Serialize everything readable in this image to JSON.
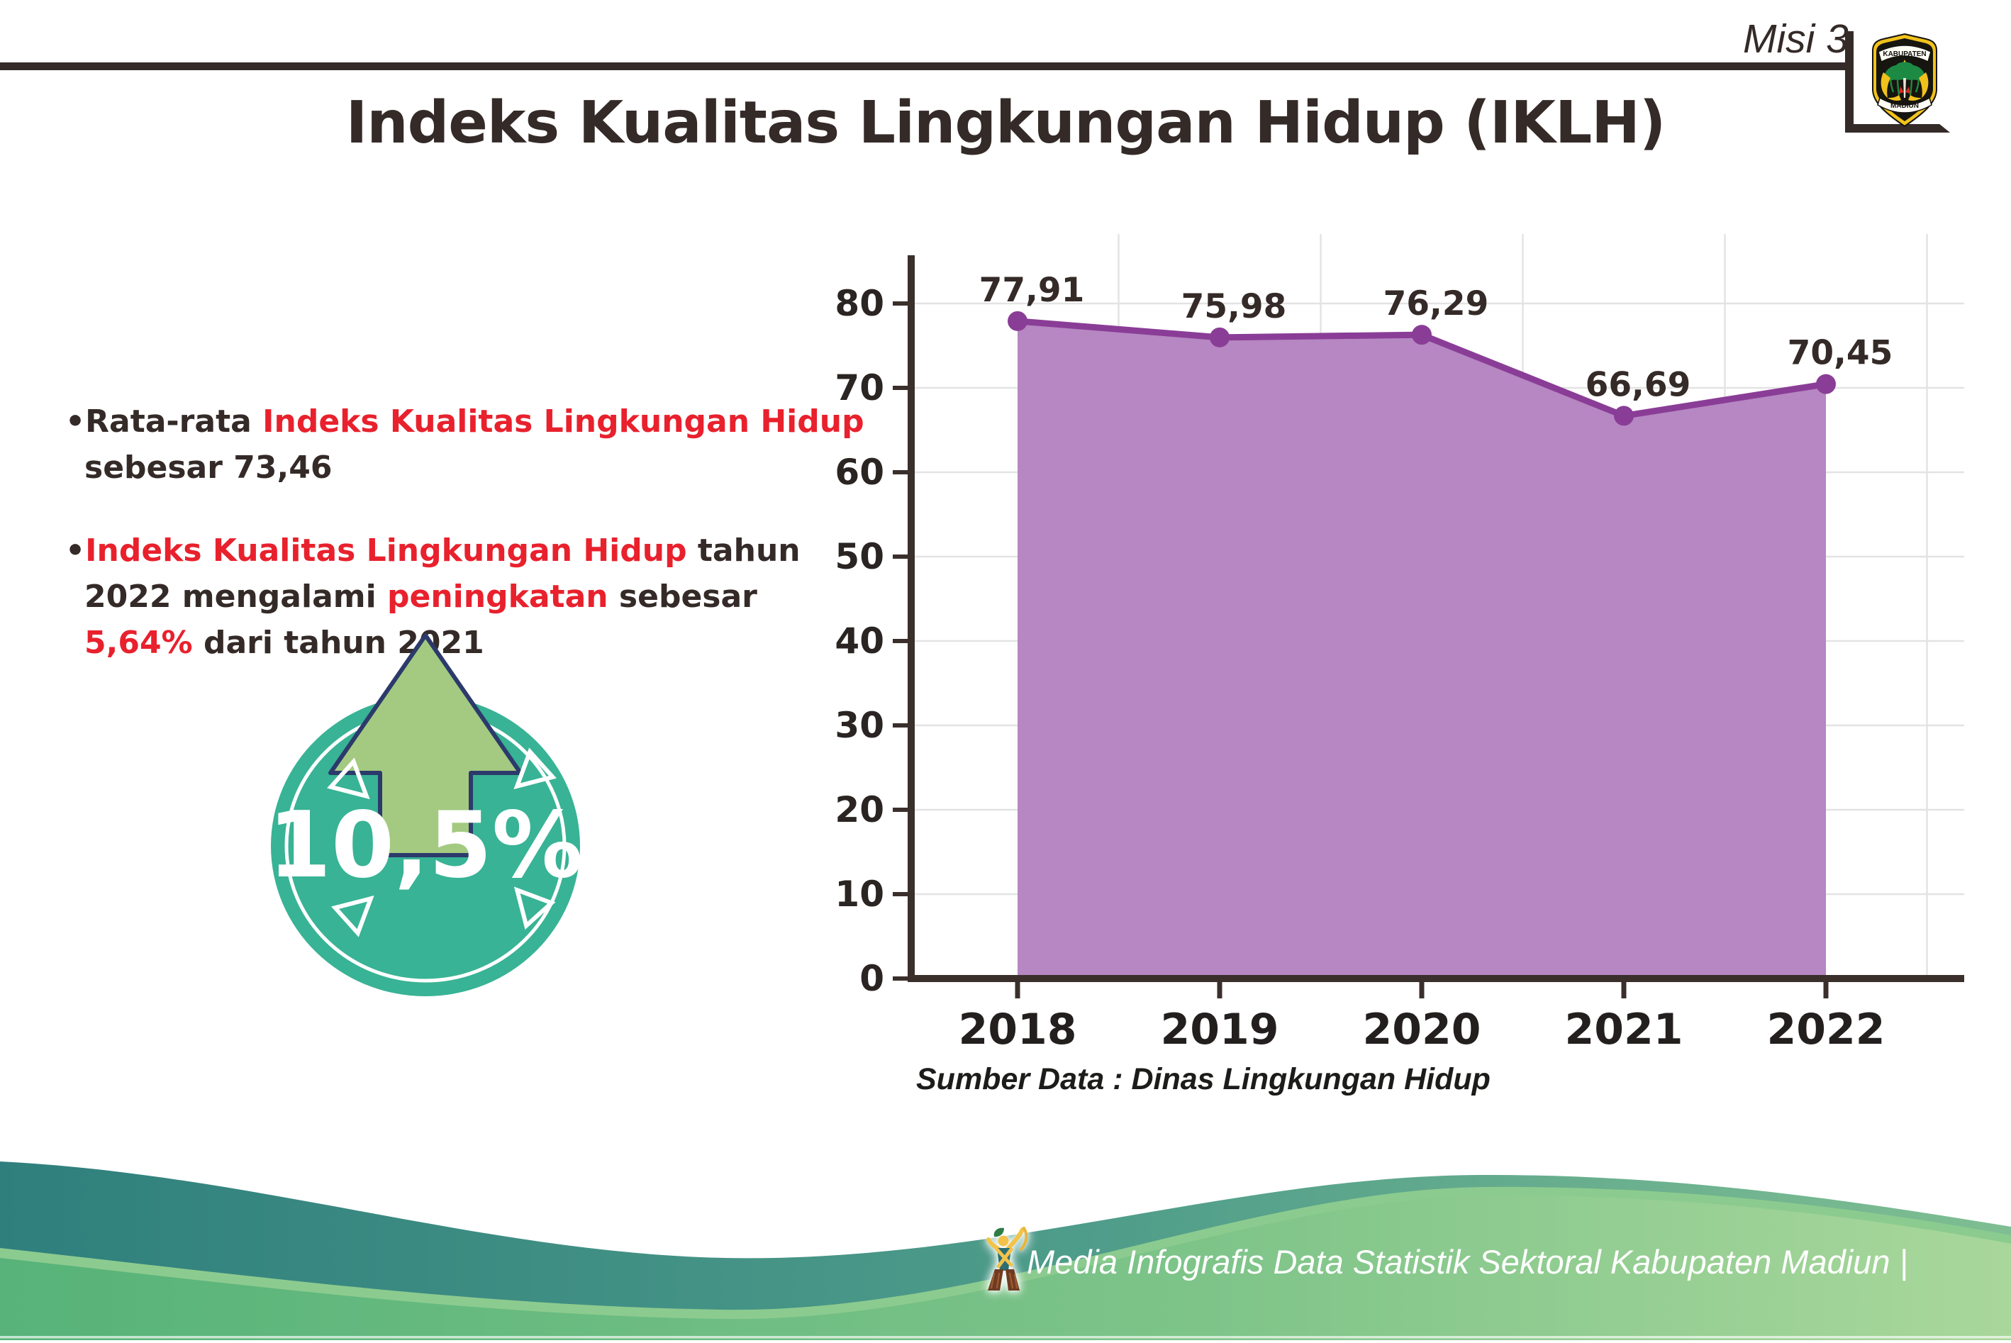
{
  "header": {
    "misi": "Misi 3",
    "logo": {
      "top": "KABUPATEN",
      "bottom": "MADIUN"
    }
  },
  "title": "Indeks Kualitas Lingkungan Hidup (IKLH)",
  "bullets": [
    {
      "marker": "•",
      "segments": [
        {
          "text": "Rata-rata ",
          "color": "dark"
        },
        {
          "text": "Indeks Kualitas Lingkungan Hidup",
          "color": "red"
        },
        {
          "text": " sebesar 73,46",
          "color": "dark"
        }
      ]
    },
    {
      "marker": "•",
      "segments": [
        {
          "text": "Indeks Kualitas Lingkungan Hidup",
          "color": "red"
        },
        {
          "text": " tahun 2022 mengalami ",
          "color": "dark"
        },
        {
          "text": "peningkatan",
          "color": "red"
        },
        {
          "text": " sebesar ",
          "color": "dark"
        },
        {
          "text": "5,64%",
          "color": "red"
        },
        {
          "text": " dari tahun 2021",
          "color": "dark"
        }
      ]
    }
  ],
  "badge": {
    "value": "10,5%"
  },
  "chart_data": {
    "type": "area",
    "categories": [
      "2018",
      "2019",
      "2020",
      "2021",
      "2022"
    ],
    "values": [
      77.91,
      75.98,
      76.29,
      66.69,
      70.45
    ],
    "value_labels": [
      "77,91",
      "75,98",
      "76,29",
      "66,69",
      "70,45"
    ],
    "title": "",
    "xlabel": "",
    "ylabel": "",
    "ylim": [
      0,
      80
    ],
    "yticks": [
      0,
      10,
      20,
      30,
      40,
      50,
      60,
      70,
      80
    ],
    "grid": true,
    "legend": false,
    "line_color": "#8a3d96",
    "fill_color": "#b687c2",
    "point_color": "#8a3d96"
  },
  "source": "Sumber Data : Dinas Lingkungan Hidup",
  "footer": {
    "text": "Media Infografis Data Statistik Sektoral Kabupaten Madiun |"
  },
  "colors": {
    "accent_red": "#e8212d",
    "text_dark": "#342a27",
    "badge_teal": "#38b395",
    "arrow_green": "#a4ca81",
    "arrow_outline": "#2c3a6b",
    "footer_teal_left": "#2f7f7d",
    "footer_teal_right": "#7fbe92",
    "footer_green_left": "#57b379",
    "footer_green_right": "#a9d79b"
  }
}
